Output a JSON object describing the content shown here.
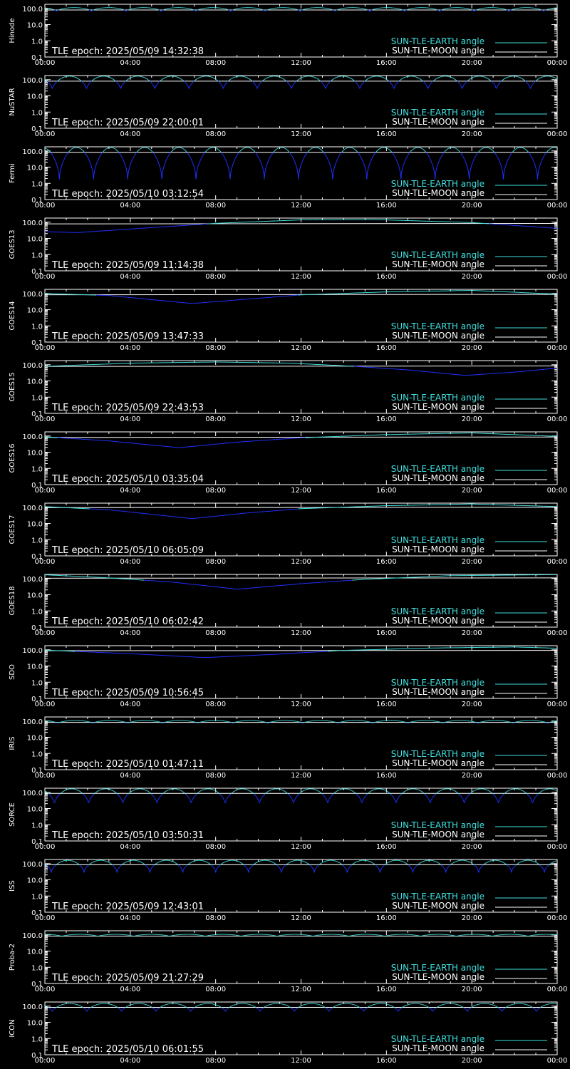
{
  "chart_data": {
    "type": "line",
    "x_tick_labels": [
      "00:00",
      "04:00",
      "08:00",
      "12:00",
      "16:00",
      "20:00",
      "00:00"
    ],
    "x_range_hours": [
      0,
      24
    ],
    "y_scale": "log",
    "ylim": [
      0.1,
      180
    ],
    "y_tick_labels": [
      "100.0",
      "10.0",
      "1.0",
      "0.1"
    ],
    "y_tick_values": [
      100,
      10,
      1,
      0.1
    ],
    "legend": {
      "position": "bottom-right",
      "items": [
        {
          "label": "SUN-TLE-EARTH angle",
          "color": "#40e0e0"
        },
        {
          "label": "SUN-TLE-MOON angle",
          "color": "#ffffff"
        }
      ]
    },
    "colors": {
      "earth_angle": "#40e0e0",
      "earth_angle_low": "#2030ff",
      "moon_angle": "#ffffff",
      "axes": "#ffffff",
      "background": "#000000"
    },
    "panels": [
      {
        "satellite": "Hinode",
        "tle_epoch": "TLE epoch: 2025/05/09 14:32:38",
        "earth": {
          "kind": "periodic",
          "period_h": 1.63,
          "max": 112,
          "min": 65,
          "phase_h": 0.55
        },
        "moon": {
          "kind": "line",
          "points": [
            [
              0,
              80
            ],
            [
              24,
              80
            ]
          ]
        }
      },
      {
        "satellite": "NuSTAR",
        "tle_epoch": "TLE epoch: 2025/05/09 22:00:01",
        "earth": {
          "kind": "periodic",
          "period_h": 1.6,
          "max": 165,
          "min": 23,
          "phase_h": 0.35
        },
        "moon": {
          "kind": "line",
          "points": [
            [
              0,
              81
            ],
            [
              24,
              81
            ]
          ]
        }
      },
      {
        "satellite": "Fermi",
        "tle_epoch": "TLE epoch: 2025/05/10 03:12:54",
        "earth": {
          "kind": "periodic",
          "period_h": 1.6,
          "max": 165,
          "min": 1.8,
          "phase_h": 0.68
        },
        "moon": {
          "kind": "line",
          "points": [
            [
              0,
              82
            ],
            [
              24,
              82
            ]
          ]
        }
      },
      {
        "satellite": "GOES13",
        "tle_epoch": "TLE epoch: 2025/05/09 11:14:38",
        "earth": {
          "kind": "line",
          "points": [
            [
              0,
              26
            ],
            [
              1.5,
              23
            ],
            [
              4,
              38
            ],
            [
              8,
              85
            ],
            [
              12,
              140
            ],
            [
              15.5,
              145
            ],
            [
              20,
              95
            ],
            [
              24,
              42
            ]
          ]
        },
        "moon": {
          "kind": "line",
          "points": [
            [
              0,
              79
            ],
            [
              24,
              84
            ]
          ]
        }
      },
      {
        "satellite": "GOES14",
        "tle_epoch": "TLE epoch: 2025/05/09 13:47:33",
        "earth": {
          "kind": "line",
          "points": [
            [
              0,
              100
            ],
            [
              3,
              75
            ],
            [
              6.9,
              24
            ],
            [
              9.5,
              45
            ],
            [
              12,
              82
            ],
            [
              16,
              125
            ],
            [
              20,
              155
            ],
            [
              24,
              92
            ]
          ]
        },
        "moon": {
          "kind": "line",
          "points": [
            [
              0,
              83
            ],
            [
              24,
              88
            ]
          ]
        }
      },
      {
        "satellite": "GOES15",
        "tle_epoch": "TLE epoch: 2025/05/09 22:43:53",
        "earth": {
          "kind": "line",
          "points": [
            [
              0,
              80
            ],
            [
              4,
              125
            ],
            [
              8,
              148
            ],
            [
              11.5,
              125
            ],
            [
              14.5,
              80
            ],
            [
              17,
              48
            ],
            [
              19.7,
              22
            ],
            [
              22,
              35
            ],
            [
              24,
              62
            ]
          ]
        },
        "moon": {
          "kind": "line",
          "points": [
            [
              0,
              79
            ],
            [
              24,
              84
            ]
          ]
        }
      },
      {
        "satellite": "GOES16",
        "tle_epoch": "TLE epoch: 2025/05/10 03:35:04",
        "earth": {
          "kind": "line",
          "points": [
            [
              0,
              90
            ],
            [
              3,
              50
            ],
            [
              6.3,
              19
            ],
            [
              9,
              42
            ],
            [
              12,
              78
            ],
            [
              16,
              122
            ],
            [
              20,
              155
            ],
            [
              24,
              95
            ]
          ]
        },
        "moon": {
          "kind": "line",
          "points": [
            [
              0,
              82
            ],
            [
              24,
              87
            ]
          ]
        }
      },
      {
        "satellite": "GOES17",
        "tle_epoch": "TLE epoch: 2025/05/10 06:05:09",
        "earth": {
          "kind": "line",
          "points": [
            [
              0,
              110
            ],
            [
              3,
              70
            ],
            [
              6.9,
              20
            ],
            [
              9.5,
              45
            ],
            [
              12,
              82
            ],
            [
              16,
              125
            ],
            [
              20,
              160
            ],
            [
              24,
              110
            ]
          ]
        },
        "moon": {
          "kind": "line",
          "points": [
            [
              0,
              95
            ],
            [
              24,
              100
            ]
          ]
        }
      },
      {
        "satellite": "GOES18",
        "tle_epoch": "TLE epoch: 2025/05/10 06:02:42",
        "earth": {
          "kind": "line",
          "points": [
            [
              0,
              170
            ],
            [
              3,
              110
            ],
            [
              6,
              60
            ],
            [
              9,
              22
            ],
            [
              12,
              48
            ],
            [
              15,
              90
            ],
            [
              19,
              150
            ],
            [
              24,
              175
            ]
          ]
        },
        "moon": {
          "kind": "line",
          "points": [
            [
              0,
              105
            ],
            [
              24,
              110
            ]
          ]
        }
      },
      {
        "satellite": "SDO",
        "tle_epoch": "TLE epoch: 2025/05/09 10:56:45",
        "earth": {
          "kind": "line",
          "points": [
            [
              0,
              95
            ],
            [
              4,
              58
            ],
            [
              7.5,
              33
            ],
            [
              11,
              55
            ],
            [
              14,
              92
            ],
            [
              18,
              128
            ],
            [
              22,
              150
            ],
            [
              24,
              125
            ]
          ]
        },
        "moon": {
          "kind": "line",
          "points": [
            [
              0,
              88
            ],
            [
              24,
              92
            ]
          ]
        }
      },
      {
        "satellite": "IRIS",
        "tle_epoch": "TLE epoch: 2025/05/10 01:47:11",
        "earth": {
          "kind": "periodic",
          "period_h": 1.64,
          "max": 108,
          "min": 72,
          "phase_h": 0.6
        },
        "moon": {
          "kind": "line",
          "points": [
            [
              0,
              83
            ],
            [
              24,
              83
            ]
          ]
        }
      },
      {
        "satellite": "SORCE",
        "tle_epoch": "TLE epoch: 2025/05/10 03:50:31",
        "earth": {
          "kind": "periodic",
          "period_h": 1.6,
          "max": 165,
          "min": 18,
          "phase_h": 0.45
        },
        "moon": {
          "kind": "line",
          "points": [
            [
              0,
              86
            ],
            [
              24,
              86
            ]
          ]
        }
      },
      {
        "satellite": "ISS",
        "tle_epoch": "TLE epoch: 2025/05/09 12:43:01",
        "earth": {
          "kind": "periodic",
          "period_h": 1.54,
          "max": 160,
          "min": 28,
          "phase_h": 0.3
        },
        "moon": {
          "kind": "line",
          "points": [
            [
              0,
              85
            ],
            [
              24,
              85
            ]
          ]
        }
      },
      {
        "satellite": "Proba-2",
        "tle_epoch": "TLE epoch: 2025/05/09 21:27:29",
        "earth": {
          "kind": "periodic",
          "period_h": 1.68,
          "max": 108,
          "min": 78,
          "phase_h": 0.8
        },
        "moon": {
          "kind": "line",
          "points": [
            [
              0,
              83
            ],
            [
              24,
              83
            ]
          ]
        }
      },
      {
        "satellite": "ICON",
        "tle_epoch": "TLE epoch: 2025/05/10 06:01:55",
        "earth": {
          "kind": "periodic",
          "period_h": 1.62,
          "max": 145,
          "min": 42,
          "phase_h": 0.35
        },
        "moon": {
          "kind": "line",
          "points": [
            [
              0,
              84
            ],
            [
              24,
              84
            ]
          ]
        }
      }
    ]
  }
}
